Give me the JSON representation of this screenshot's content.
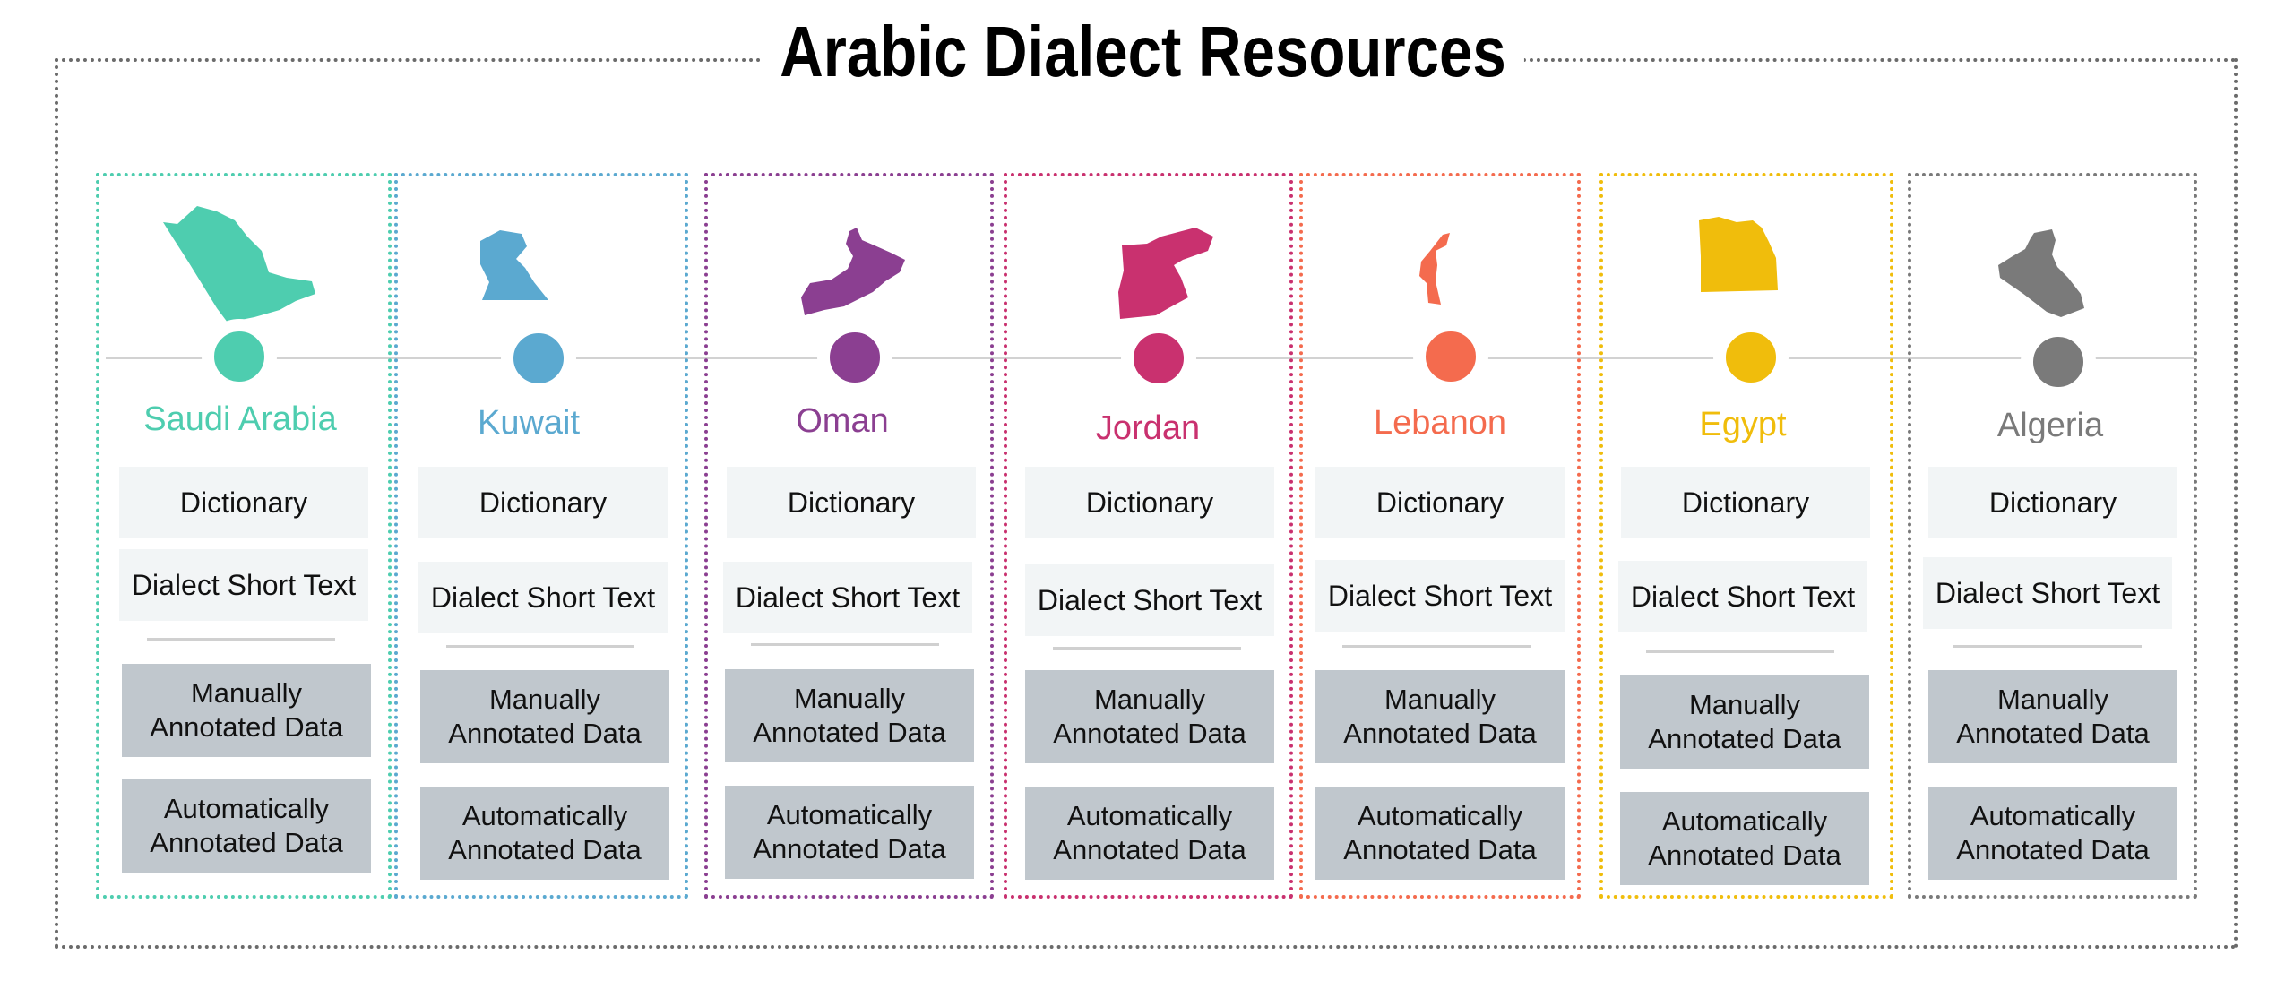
{
  "title": "Arabic Dialect Resources",
  "resource_types": {
    "dictionary": "Dictionary",
    "short_text": "Dialect Short Text",
    "manual_line1": "Manually",
    "manual_line2": "Annotated Data",
    "auto_line1": "Automatically",
    "auto_line2": "Annotated Data"
  },
  "countries": [
    {
      "name": "Saudi Arabia",
      "color": "#4ecdaf",
      "map_icon": "saudi-arabia-map-icon"
    },
    {
      "name": "Kuwait",
      "color": "#5ba9d0",
      "map_icon": "kuwait-map-icon"
    },
    {
      "name": "Oman",
      "color": "#8b3f91",
      "map_icon": "oman-map-icon"
    },
    {
      "name": "Jordan",
      "color": "#c9316f",
      "map_icon": "jordan-map-icon"
    },
    {
      "name": "Lebanon",
      "color": "#f46b4e",
      "map_icon": "lebanon-map-icon"
    },
    {
      "name": "Egypt",
      "color": "#f0bd0c",
      "map_icon": "egypt-map-icon"
    },
    {
      "name": "Algeria",
      "color": "#7a7a7a",
      "map_icon": "algeria-map-icon"
    }
  ]
}
